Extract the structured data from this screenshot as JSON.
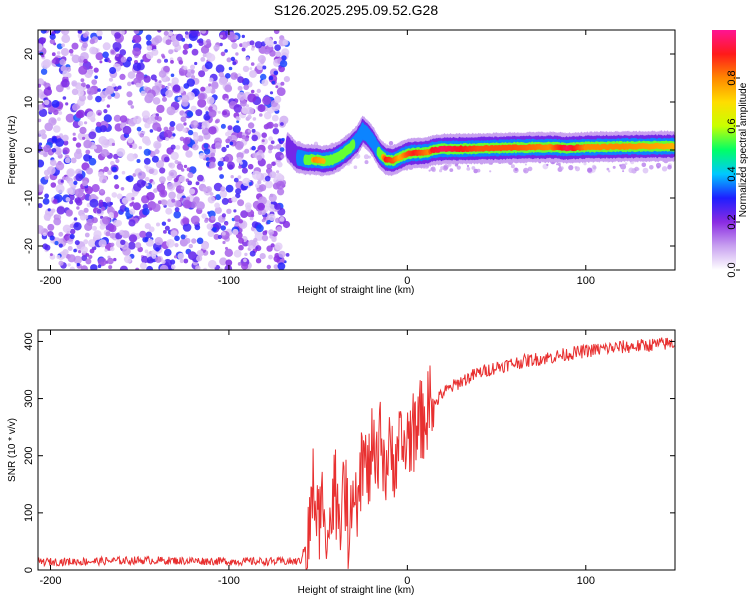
{
  "title": "S126.2025.295.09.52.G28",
  "chart_data": [
    {
      "type": "heatmap",
      "name": "spectrogram",
      "xlabel": "Height of straight line (km)",
      "ylabel": "Frequency (Hz)",
      "xlim": [
        -207,
        150
      ],
      "ylim": [
        -25,
        25
      ],
      "xticks": [
        -200,
        -100,
        0,
        100
      ],
      "yticks": [
        -20,
        -10,
        0,
        10,
        20
      ],
      "noise_region_x": [
        -207,
        -67
      ],
      "ridge": {
        "x": [
          -67,
          -62,
          -57,
          -52,
          -47,
          -42,
          -37,
          -32,
          -28,
          -25,
          -22,
          -19,
          -16,
          -12,
          -8,
          -4,
          0,
          4,
          8,
          12,
          14,
          20,
          40,
          60,
          80,
          90,
          100,
          120,
          150
        ],
        "freq": [
          0.5,
          -1.5,
          -2.0,
          -2.0,
          -2.3,
          -2.0,
          -1.0,
          0.5,
          2.0,
          4.0,
          3.0,
          1.5,
          -0.5,
          -2.0,
          -2.2,
          -1.5,
          -0.8,
          -0.6,
          -0.6,
          -0.4,
          0.0,
          0.2,
          0.3,
          0.5,
          0.6,
          0.4,
          0.6,
          0.7,
          0.8
        ],
        "amp": [
          0.25,
          0.35,
          0.55,
          0.8,
          0.75,
          0.6,
          0.55,
          0.6,
          0.5,
          0.45,
          0.5,
          0.5,
          0.55,
          0.9,
          0.85,
          0.75,
          0.85,
          0.9,
          0.85,
          0.8,
          0.9,
          0.95,
          0.85,
          0.85,
          0.8,
          0.95,
          0.8,
          0.8,
          0.75
        ]
      },
      "colorbar": {
        "label": "Normalized spectral amplitude",
        "ticks": [
          "0.0",
          "0.2",
          "0.4",
          "0.6",
          "0.8"
        ],
        "range": [
          0,
          1
        ],
        "colors": [
          "#ffffff",
          "#c8a0f0",
          "#8a2be2",
          "#1e1eff",
          "#00c8ff",
          "#00ff66",
          "#c8ff00",
          "#ffdd00",
          "#ff8800",
          "#ff1a1a",
          "#ff1493"
        ]
      }
    },
    {
      "type": "line",
      "name": "snr",
      "xlabel": "Height of straight line (km)",
      "ylabel": "SNR (10 * v/v)",
      "xlim": [
        -207,
        150
      ],
      "ylim": [
        0,
        420
      ],
      "xticks": [
        -200,
        -100,
        0,
        100
      ],
      "yticks": [
        0,
        100,
        200,
        300,
        400
      ],
      "color": "#e83030",
      "x": [
        -207,
        -180,
        -150,
        -120,
        -100,
        -80,
        -60,
        -55,
        -53,
        -50,
        -47,
        -44,
        -41,
        -38,
        -35,
        -33,
        -30,
        -28,
        -25,
        -22,
        -20,
        -17,
        -15,
        -12,
        -10,
        -7,
        -5,
        -2,
        0,
        5,
        10,
        15,
        20,
        25,
        30,
        40,
        50,
        60,
        70,
        80,
        90,
        100,
        110,
        120,
        130,
        140,
        150
      ],
      "snr": [
        14,
        15,
        17,
        16,
        15,
        15,
        15,
        60,
        150,
        80,
        130,
        60,
        140,
        100,
        150,
        60,
        180,
        130,
        200,
        160,
        210,
        170,
        230,
        180,
        200,
        200,
        220,
        210,
        230,
        250,
        270,
        290,
        310,
        320,
        330,
        345,
        355,
        362,
        368,
        372,
        378,
        383,
        387,
        390,
        392,
        395,
        397
      ]
    }
  ]
}
